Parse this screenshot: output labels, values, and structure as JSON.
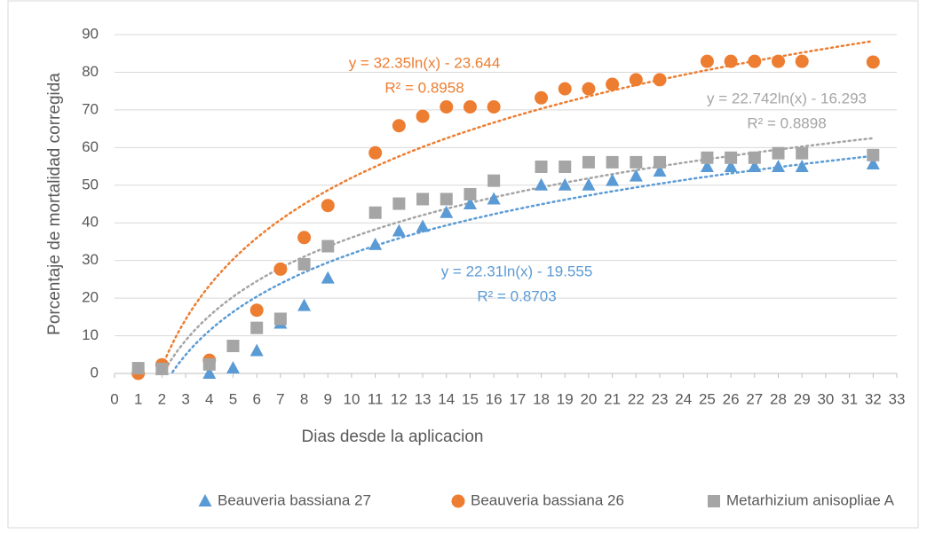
{
  "chart_data": {
    "type": "scatter",
    "x_label": "Dias desde la aplicacion",
    "y_label": "Porcentaje de mortalidad corregida",
    "xlim": [
      0,
      33
    ],
    "xticks": [
      0,
      1,
      2,
      3,
      4,
      5,
      6,
      7,
      8,
      9,
      10,
      11,
      12,
      13,
      14,
      15,
      16,
      17,
      18,
      19,
      20,
      21,
      22,
      23,
      24,
      25,
      26,
      27,
      28,
      29,
      30,
      31,
      32,
      33
    ],
    "ylim": [
      0,
      90
    ],
    "yticks": [
      0,
      10,
      20,
      30,
      40,
      50,
      60,
      70,
      80,
      90
    ],
    "grid": true,
    "legend": "bottom",
    "series": [
      {
        "name": "Beauveria bassiana 27",
        "color": "#5b9bd5",
        "marker": "triangle",
        "trendline": "logarithmic",
        "equation": "y = 22.31ln(x) - 19.555",
        "r_squared": "R² = 0.8703",
        "x": [
          1,
          2,
          4,
          5,
          6,
          7,
          8,
          9,
          11,
          12,
          13,
          14,
          15,
          16,
          18,
          19,
          20,
          21,
          22,
          23,
          25,
          26,
          27,
          28,
          29,
          32
        ],
        "values": [
          1.2,
          1.0,
          0,
          1.4,
          6,
          13.3,
          18,
          25.3,
          34.2,
          37.8,
          39,
          42.7,
          45,
          46.3,
          50,
          50,
          50,
          51.2,
          52.4,
          53.7,
          54.9,
          54.9,
          54.9,
          54.9,
          54.9,
          55.6
        ]
      },
      {
        "name": "Beauveria bassiana 26",
        "color": "#ed7d31",
        "marker": "circle",
        "trendline": "logarithmic",
        "equation": "y = 32.35ln(x) - 23.644",
        "r_squared": "R² = 0.8958",
        "x": [
          1,
          2,
          4,
          6,
          7,
          8,
          9,
          11,
          12,
          13,
          14,
          15,
          16,
          18,
          19,
          20,
          21,
          22,
          23,
          25,
          26,
          27,
          28,
          29,
          32
        ],
        "values": [
          0,
          2.3,
          3.5,
          16.8,
          27.7,
          36.1,
          44.6,
          58.6,
          65.8,
          68.3,
          70.8,
          70.8,
          70.8,
          73.2,
          75.6,
          75.6,
          76.8,
          78,
          78,
          82.9,
          82.9,
          82.9,
          82.9,
          82.9,
          82.7
        ]
      },
      {
        "name": "Metarhizium anisopliae A",
        "color": "#a5a5a5",
        "marker": "square",
        "trendline": "logarithmic",
        "equation": "y = 22.742ln(x) - 16.293",
        "r_squared": "R² = 0.8898",
        "x": [
          1,
          2,
          4,
          5,
          6,
          7,
          8,
          9,
          11,
          12,
          13,
          14,
          15,
          16,
          18,
          19,
          20,
          21,
          22,
          23,
          25,
          26,
          27,
          28,
          29,
          32
        ],
        "values": [
          1.4,
          1.2,
          2.4,
          7.3,
          12.1,
          14.5,
          29,
          33.8,
          42.7,
          45.1,
          46.3,
          46.3,
          47.6,
          51.2,
          54.9,
          54.9,
          56.1,
          56.1,
          56.1,
          56.1,
          57.3,
          57.3,
          57.3,
          58.5,
          58.5,
          58
        ]
      }
    ]
  }
}
